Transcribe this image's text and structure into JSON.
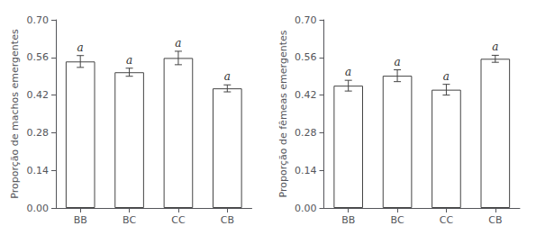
{
  "chart_data": [
    {
      "type": "bar",
      "ylabel": "Proporção de machos emergentes",
      "categories": [
        "BB",
        "BC",
        "CC",
        "CB"
      ],
      "values": [
        0.545,
        0.505,
        0.558,
        0.445
      ],
      "errors": [
        0.022,
        0.015,
        0.025,
        0.013
      ],
      "annotations": [
        "a",
        "a",
        "a",
        "a"
      ],
      "color": "#ffffff",
      "ylim": [
        0.0,
        0.7
      ],
      "yticks": [
        {
          "value": 0.0,
          "label": "0.00"
        },
        0.14,
        0.28,
        0.42,
        0.56,
        {
          "value": 0.7,
          "label": "0.70"
        }
      ],
      "grid": false
    },
    {
      "type": "bar",
      "ylabel": "Proporção de fêmeas emergentes",
      "categories": [
        "BB",
        "BC",
        "CC",
        "CB"
      ],
      "values": [
        0.455,
        0.492,
        0.44,
        0.555
      ],
      "errors": [
        0.02,
        0.022,
        0.02,
        0.013
      ],
      "annotations": [
        "a",
        "a",
        "a",
        "a"
      ],
      "color": "#ffffff",
      "ylim": [
        0.0,
        0.7
      ],
      "yticks": [
        {
          "value": 0.0,
          "label": "0.00"
        },
        0.14,
        0.28,
        0.42,
        0.56,
        {
          "value": 0.7,
          "label": "0.70"
        }
      ],
      "grid": false
    }
  ]
}
